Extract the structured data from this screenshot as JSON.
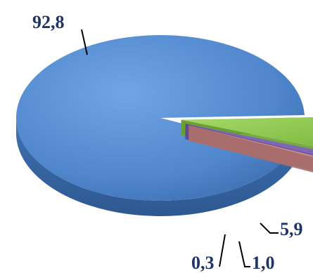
{
  "chart_data": {
    "type": "pie",
    "categories": [
      "",
      "",
      "",
      ""
    ],
    "values": [
      92.8,
      5.9,
      1.0,
      0.3
    ],
    "data_labels": [
      "92,8",
      "5,9",
      "1,0",
      "0,3"
    ],
    "colors": [
      "#4f81c8",
      "#8bc34a",
      "#7e67b7",
      "#c98d8a"
    ],
    "title": "",
    "legend": "none",
    "style": "3d-exploded"
  }
}
